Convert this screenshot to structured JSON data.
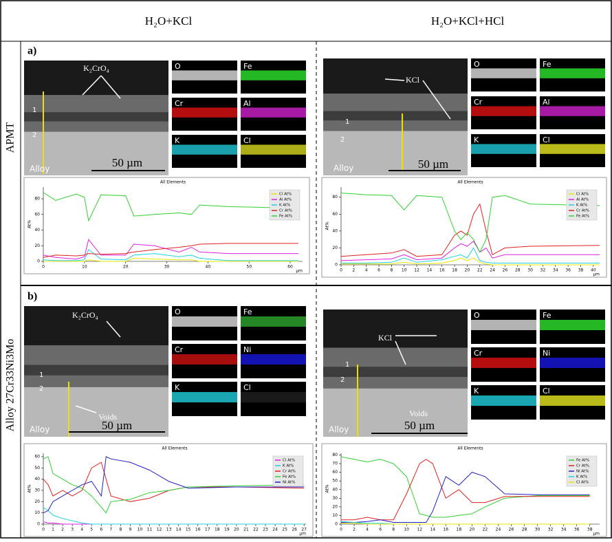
{
  "header": {
    "columns": [
      "H₂O+KCl",
      "H₂O+KCl+HCl"
    ]
  },
  "rows": [
    {
      "label": "APMT",
      "panel_label": "a)",
      "panels": [
        {
          "micrograph": {
            "annotations": [
              "K₂CrO₄",
              "Alloy",
              "50 µm",
              "1",
              "2"
            ]
          },
          "maps": [
            {
              "label": "O",
              "color": "#e0e0e0"
            },
            {
              "label": "Fe",
              "color": "#2ee62e"
            },
            {
              "label": "Cr",
              "color": "#e01010"
            },
            {
              "label": "Al",
              "color": "#d020d0"
            },
            {
              "label": "K",
              "color": "#20c8d8"
            },
            {
              "label": "Cl",
              "color": "#d8d820"
            }
          ],
          "chart": {
            "type": "line",
            "title": "All Elements",
            "y_label": "At%",
            "x_unit": "μm",
            "x": [
              0,
              3,
              8,
              10,
              11,
              14,
              20,
              22,
              27,
              33,
              36,
              38,
              45,
              62
            ],
            "xlim": [
              0,
              63
            ],
            "xticks": [
              0,
              10,
              20,
              30,
              40,
              50,
              60
            ],
            "ylim": [
              0,
              95
            ],
            "yticks": [
              0,
              20,
              40,
              60,
              80
            ],
            "series": [
              {
                "name": "Cl At%",
                "color": "#e6e600",
                "values": [
                  0,
                  0,
                  0,
                  0,
                  2,
                  0,
                  0,
                  4,
                  3,
                  2,
                  2,
                  0,
                  0,
                  0
                ]
              },
              {
                "name": "Al At%",
                "color": "#e020e0",
                "values": [
                  8,
                  5,
                  3,
                  6,
                  28,
                  8,
                  8,
                  22,
                  20,
                  12,
                  18,
                  12,
                  10,
                  10
                ]
              },
              {
                "name": "K At%",
                "color": "#20d0e0",
                "values": [
                  2,
                  1,
                  1,
                  2,
                  15,
                  3,
                  2,
                  8,
                  10,
                  6,
                  8,
                  4,
                  1,
                  1
                ]
              },
              {
                "name": "Cr At%",
                "color": "#e02020",
                "values": [
                  5,
                  8,
                  7,
                  8,
                  10,
                  9,
                  10,
                  12,
                  15,
                  18,
                  20,
                  22,
                  23,
                  23
                ]
              },
              {
                "name": "Fe At%",
                "color": "#30d030",
                "values": [
                  88,
                  78,
                  86,
                  82,
                  52,
                  85,
                  84,
                  58,
                  60,
                  62,
                  60,
                  72,
                  70,
                  68
                ]
              }
            ]
          }
        },
        {
          "micrograph": {
            "annotations": [
              "KCl",
              "Alloy",
              "50 µm",
              "1",
              "2"
            ]
          },
          "maps": [
            {
              "label": "O",
              "color": "#e0e0e0"
            },
            {
              "label": "Fe",
              "color": "#2ee62e"
            },
            {
              "label": "Cr",
              "color": "#e01010"
            },
            {
              "label": "Al",
              "color": "#d020d0"
            },
            {
              "label": "K",
              "color": "#20c8d8"
            },
            {
              "label": "Cl",
              "color": "#e8e820"
            }
          ],
          "chart": {
            "type": "line",
            "title": "All Elements",
            "y_label": "At%",
            "x_unit": "μm",
            "x": [
              0,
              4,
              8,
              10,
              12,
              16,
              18,
              19,
              20,
              21,
              22,
              23,
              24,
              26,
              30,
              41
            ],
            "xlim": [
              0,
              41
            ],
            "xticks": [
              0,
              2,
              4,
              6,
              8,
              10,
              12,
              14,
              16,
              18,
              20,
              22,
              24,
              26,
              28,
              30,
              32,
              34,
              36,
              38,
              40
            ],
            "ylim": [
              0,
              92
            ],
            "yticks": [
              0,
              20,
              40,
              60,
              80
            ],
            "series": [
              {
                "name": "Cl At%",
                "color": "#e6e600",
                "values": [
                  1,
                  1,
                  1,
                  3,
                  1,
                  2,
                  5,
                  8,
                  5,
                  8,
                  3,
                  1,
                  0,
                  0,
                  0,
                  0
                ]
              },
              {
                "name": "Al At%",
                "color": "#e020e0",
                "values": [
                  5,
                  6,
                  7,
                  12,
                  6,
                  8,
                  20,
                  25,
                  22,
                  28,
                  15,
                  20,
                  8,
                  12,
                  12,
                  12
                ]
              },
              {
                "name": "K At%",
                "color": "#20d0e0",
                "values": [
                  2,
                  2,
                  3,
                  8,
                  3,
                  6,
                  10,
                  12,
                  8,
                  20,
                  5,
                  3,
                  2,
                  2,
                  2,
                  2
                ]
              },
              {
                "name": "Cr At%",
                "color": "#e02020",
                "values": [
                  10,
                  12,
                  14,
                  18,
                  10,
                  12,
                  35,
                  40,
                  35,
                  60,
                  72,
                  40,
                  12,
                  20,
                  22,
                  23
                ]
              },
              {
                "name": "Fe At%",
                "color": "#30d030",
                "values": [
                  85,
                  83,
                  82,
                  65,
                  82,
                  80,
                  40,
                  30,
                  38,
                  30,
                  15,
                  30,
                  80,
                  82,
                  72,
                  70
                ]
              }
            ]
          }
        }
      ]
    },
    {
      "label": "Alloy 27Cr33Ni3Mo",
      "panel_label": "b)",
      "panels": [
        {
          "micrograph": {
            "annotations": [
              "K₂CrO₄",
              "Alloy",
              "50 µm",
              "1",
              "2",
              "Voids"
            ]
          },
          "maps": [
            {
              "label": "O",
              "color": "#e0e0e0"
            },
            {
              "label": "Fe",
              "color": "#2ea82e"
            },
            {
              "label": "Cr",
              "color": "#d01010"
            },
            {
              "label": "Ni",
              "color": "#1818e0"
            },
            {
              "label": "K",
              "color": "#20d0e0"
            },
            {
              "label": "Cl",
              "color": "#202020"
            }
          ],
          "chart": {
            "type": "line",
            "title": "All Elements",
            "y_label": "At%",
            "x_unit": "μm",
            "x": [
              0,
              0.5,
              1,
              2,
              3,
              4,
              5,
              6,
              6.5,
              7,
              9,
              11,
              13,
              15,
              20,
              27
            ],
            "xlim": [
              0,
              27.2
            ],
            "xticks": [
              0,
              1,
              2,
              3,
              4,
              5,
              6,
              7,
              8,
              9,
              10,
              11,
              12,
              13,
              14,
              15,
              16,
              17,
              18,
              19,
              20,
              21,
              22,
              23,
              24,
              25,
              26,
              27
            ],
            "ylim": [
              0,
              63
            ],
            "yticks": [
              0,
              10,
              20,
              30,
              40,
              50,
              60
            ],
            "series": [
              {
                "name": "Cl At%",
                "color": "#e020e0",
                "values": [
                  2,
                  1,
                  1,
                  0,
                  0,
                  0,
                  0,
                  0,
                  0,
                  0,
                  0,
                  0,
                  0,
                  0,
                  0,
                  0
                ]
              },
              {
                "name": "K At%",
                "color": "#20d0e0",
                "values": [
                  15,
                  12,
                  8,
                  5,
                  3,
                  1,
                  0,
                  0,
                  0,
                  0,
                  0,
                  0,
                  0,
                  0,
                  0,
                  0
                ]
              },
              {
                "name": "Cr At%",
                "color": "#e02020",
                "values": [
                  40,
                  35,
                  25,
                  30,
                  25,
                  30,
                  50,
                  55,
                  40,
                  25,
                  20,
                  23,
                  30,
                  33,
                  33,
                  32
                ]
              },
              {
                "name": "Fe At%",
                "color": "#30d030",
                "values": [
                  58,
                  60,
                  45,
                  40,
                  35,
                  32,
                  25,
                  15,
                  10,
                  20,
                  22,
                  28,
                  30,
                  33,
                  34,
                  35
                ]
              },
              {
                "name": "Ni At%",
                "color": "#2020c0",
                "values": [
                  10,
                  12,
                  20,
                  25,
                  30,
                  35,
                  38,
                  25,
                  60,
                  58,
                  55,
                  48,
                  38,
                  32,
                  33,
                  33
                ]
              }
            ]
          }
        },
        {
          "micrograph": {
            "annotations": [
              "KCl",
              "Alloy",
              "50 µm",
              "1",
              "2",
              "Voids"
            ]
          },
          "maps": [
            {
              "label": "O",
              "color": "#e0e0e0"
            },
            {
              "label": "Fe",
              "color": "#2ee62e"
            },
            {
              "label": "Cr",
              "color": "#e01010"
            },
            {
              "label": "Ni",
              "color": "#1818e0"
            },
            {
              "label": "K",
              "color": "#20d0e0"
            },
            {
              "label": "Cl",
              "color": "#e8e820"
            }
          ],
          "chart": {
            "type": "line",
            "title": "All Elements",
            "y_label": "At%",
            "x_unit": "μm",
            "x": [
              0,
              2,
              4,
              6,
              8,
              10,
              12,
              13,
              14,
              16,
              18,
              20,
              22,
              25,
              30,
              38
            ],
            "xlim": [
              0,
              39.5
            ],
            "xticks": [
              0,
              2,
              4,
              6,
              8,
              10,
              12,
              14,
              16,
              18,
              20,
              22,
              24,
              26,
              28,
              30,
              32,
              34,
              36,
              38
            ],
            "ylim": [
              0,
              82
            ],
            "yticks": [
              0,
              10,
              20,
              30,
              40,
              50,
              60,
              70,
              80
            ],
            "series": [
              {
                "name": "Fe At%",
                "color": "#30d030",
                "values": [
                  78,
                  75,
                  72,
                  75,
                  70,
                  55,
                  12,
                  10,
                  8,
                  8,
                  10,
                  12,
                  20,
                  30,
                  33,
                  33
                ]
              },
              {
                "name": "Cr At%",
                "color": "#e02020",
                "values": [
                  5,
                  5,
                  8,
                  5,
                  5,
                  35,
                  70,
                  75,
                  70,
                  30,
                  40,
                  25,
                  25,
                  32,
                  32,
                  32
                ]
              },
              {
                "name": "Ni At%",
                "color": "#2020c0",
                "values": [
                  2,
                  2,
                  3,
                  5,
                  2,
                  2,
                  2,
                  2,
                  15,
                  55,
                  45,
                  60,
                  55,
                  35,
                  34,
                  34
                ]
              },
              {
                "name": "K At%",
                "color": "#20d0e0",
                "values": [
                  3,
                  2,
                  1,
                  1,
                  0,
                  0,
                  0,
                  0,
                  0,
                  0,
                  0,
                  0,
                  0,
                  0,
                  0,
                  0
                ]
              },
              {
                "name": "Cl At%",
                "color": "#e6e600",
                "values": [
                  1,
                  1,
                  0,
                  0,
                  0,
                  0,
                  0,
                  0,
                  0,
                  0,
                  0,
                  0,
                  0,
                  0,
                  0,
                  0
                ]
              }
            ]
          }
        }
      ]
    }
  ]
}
